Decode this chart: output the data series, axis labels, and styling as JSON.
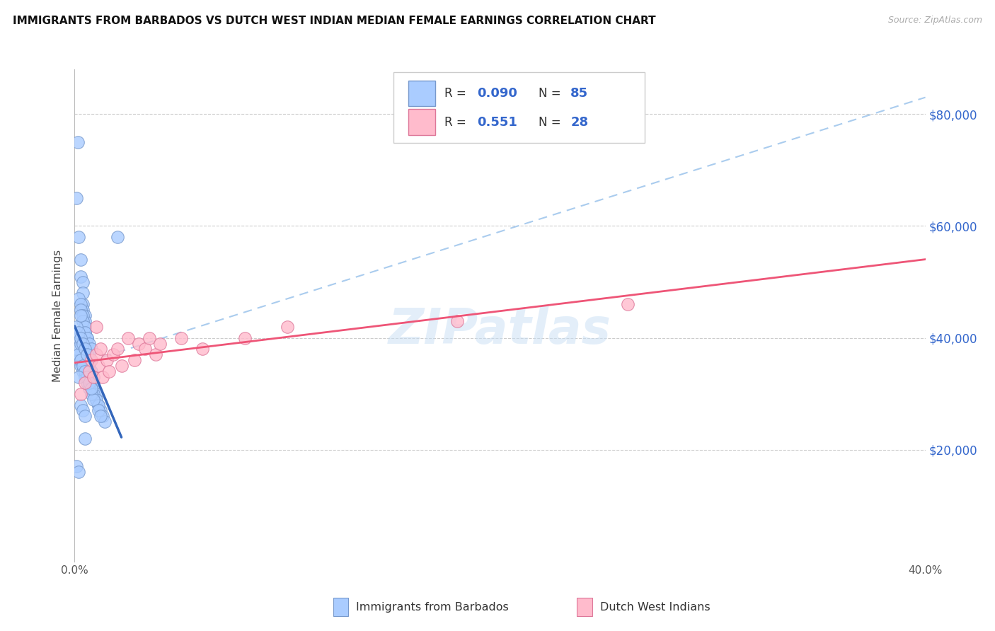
{
  "title": "IMMIGRANTS FROM BARBADOS VS DUTCH WEST INDIAN MEDIAN FEMALE EARNINGS CORRELATION CHART",
  "source": "Source: ZipAtlas.com",
  "ylabel": "Median Female Earnings",
  "xlim": [
    0.0,
    0.4
  ],
  "ylim": [
    0,
    88000
  ],
  "yticks": [
    20000,
    40000,
    60000,
    80000
  ],
  "ytick_labels": [
    "$20,000",
    "$40,000",
    "$60,000",
    "$80,000"
  ],
  "xtick_labels": [
    "0.0%",
    "",
    "",
    "",
    "",
    "",
    "",
    "",
    "40.0%"
  ],
  "xticks": [
    0.0,
    0.05,
    0.1,
    0.15,
    0.2,
    0.25,
    0.3,
    0.35,
    0.4
  ],
  "background_color": "#ffffff",
  "grid_color": "#cccccc",
  "barbados_face": "#aaccff",
  "barbados_edge": "#7799cc",
  "dutch_face": "#ffbbcc",
  "dutch_edge": "#dd7799",
  "trend_blue": "#3366bb",
  "trend_pink": "#ee5577",
  "trend_dash": "#aaccee",
  "R_barbados": 0.09,
  "N_barbados": 85,
  "R_dutch": 0.551,
  "N_dutch": 28,
  "watermark": "ZIPatlas",
  "legend_color": "#3366cc",
  "legend_text_color": "#333333"
}
